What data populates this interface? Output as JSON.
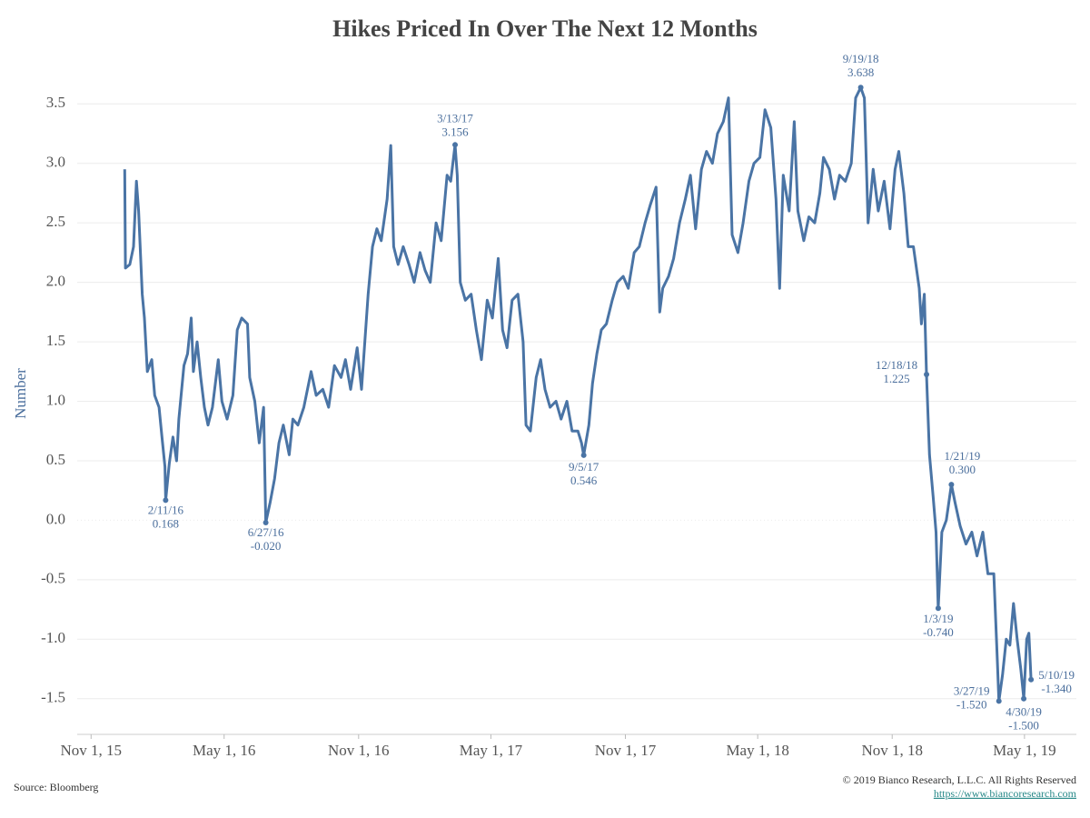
{
  "chart_data": {
    "type": "line",
    "title": "Hikes Priced In Over The Next 12 Months",
    "y_label": "Number",
    "source": "Source: Bloomberg",
    "copyright": "© 2019 Bianco Research, L.L.C. All Rights Reserved",
    "link": "https://www.biancoresearch.com",
    "xlim": [
      "2015-10-13",
      "2019-07-11"
    ],
    "ylim": [
      -1.8,
      3.93
    ],
    "grid": true,
    "zero_line": true,
    "xticks": [
      {
        "value": "2015-11-01",
        "label": "Nov 1, 15"
      },
      {
        "value": "2016-05-01",
        "label": "May 1, 16"
      },
      {
        "value": "2016-11-01",
        "label": "Nov 1, 16"
      },
      {
        "value": "2017-05-01",
        "label": "May 1, 17"
      },
      {
        "value": "2017-11-01",
        "label": "Nov 1, 17"
      },
      {
        "value": "2018-05-01",
        "label": "May 1, 18"
      },
      {
        "value": "2018-11-01",
        "label": "Nov 1, 18"
      },
      {
        "value": "2019-05-01",
        "label": "May 1, 19"
      }
    ],
    "yticks": [
      3.5,
      {
        "value": 3.0,
        "label": "3.0"
      },
      2.5,
      {
        "value": 2.0,
        "label": "2.0"
      },
      1.5,
      {
        "value": 1.0,
        "label": "1.0"
      },
      0.5,
      {
        "value": 0,
        "label": "0.0"
      },
      -0.5,
      {
        "value": -1.0,
        "label": "-1.0"
      },
      -1.5
    ],
    "x": [
      "2015-12-17",
      "2015-12-18",
      "2015-12-24",
      "2015-12-29",
      "2016-01-02",
      "2016-01-05",
      "2016-01-10",
      "2016-01-13",
      "2016-01-17",
      "2016-01-23",
      "2016-01-27",
      "2016-02-02",
      "2016-02-06",
      "2016-02-10",
      "2016-02-11",
      "2016-02-16",
      "2016-02-21",
      "2016-02-26",
      "2016-02-29",
      "2016-03-07",
      "2016-03-12",
      "2016-03-17",
      "2016-03-20",
      "2016-03-25",
      "2016-03-30",
      "2016-04-04",
      "2016-04-09",
      "2016-04-15",
      "2016-04-23",
      "2016-04-28",
      "2016-05-05",
      "2016-05-13",
      "2016-05-19",
      "2016-05-25",
      "2016-06-02",
      "2016-06-05",
      "2016-06-12",
      "2016-06-18",
      "2016-06-24",
      "2016-06-27",
      "2016-07-03",
      "2016-07-09",
      "2016-07-15",
      "2016-07-21",
      "2016-07-29",
      "2016-08-03",
      "2016-08-10",
      "2016-08-18",
      "2016-08-28",
      "2016-09-04",
      "2016-09-13",
      "2016-09-21",
      "2016-09-29",
      "2016-10-08",
      "2016-10-14",
      "2016-10-21",
      "2016-10-30",
      "2016-11-05",
      "2016-11-14",
      "2016-11-20",
      "2016-11-26",
      "2016-12-02",
      "2016-12-10",
      "2016-12-15",
      "2016-12-19",
      "2016-12-25",
      "2017-01-01",
      "2017-01-09",
      "2017-01-16",
      "2017-01-24",
      "2017-01-31",
      "2017-02-07",
      "2017-02-15",
      "2017-02-22",
      "2017-03-02",
      "2017-03-07",
      "2017-03-13",
      "2017-03-16",
      "2017-03-20",
      "2017-03-27",
      "2017-04-04",
      "2017-04-11",
      "2017-04-18",
      "2017-04-26",
      "2017-05-03",
      "2017-05-11",
      "2017-05-17",
      "2017-05-23",
      "2017-05-30",
      "2017-06-07",
      "2017-06-14",
      "2017-06-18",
      "2017-06-24",
      "2017-07-02",
      "2017-07-08",
      "2017-07-14",
      "2017-07-21",
      "2017-07-29",
      "2017-08-05",
      "2017-08-13",
      "2017-08-20",
      "2017-08-28",
      "2017-09-02",
      "2017-09-05",
      "2017-09-12",
      "2017-09-17",
      "2017-09-23",
      "2017-09-29",
      "2017-10-06",
      "2017-10-14",
      "2017-10-21",
      "2017-10-29",
      "2017-11-05",
      "2017-11-13",
      "2017-11-20",
      "2017-11-28",
      "2017-12-05",
      "2017-12-13",
      "2017-12-18",
      "2017-12-22",
      "2017-12-30",
      "2018-01-06",
      "2018-01-14",
      "2018-01-22",
      "2018-01-29",
      "2018-02-05",
      "2018-02-13",
      "2018-02-20",
      "2018-02-28",
      "2018-03-07",
      "2018-03-15",
      "2018-03-22",
      "2018-03-27",
      "2018-04-04",
      "2018-04-11",
      "2018-04-19",
      "2018-04-26",
      "2018-05-04",
      "2018-05-11",
      "2018-05-19",
      "2018-05-26",
      "2018-05-31",
      "2018-06-05",
      "2018-06-13",
      "2018-06-20",
      "2018-06-25",
      "2018-07-03",
      "2018-07-10",
      "2018-07-18",
      "2018-07-25",
      "2018-07-30",
      "2018-08-07",
      "2018-08-14",
      "2018-08-21",
      "2018-08-29",
      "2018-09-06",
      "2018-09-12",
      "2018-09-19",
      "2018-09-24",
      "2018-09-29",
      "2018-10-06",
      "2018-10-13",
      "2018-10-21",
      "2018-10-29",
      "2018-11-05",
      "2018-11-10",
      "2018-11-17",
      "2018-11-23",
      "2018-11-30",
      "2018-12-08",
      "2018-12-11",
      "2018-12-15",
      "2018-12-18",
      "2018-12-22",
      "2018-12-27",
      "2018-12-31",
      "2019-01-03",
      "2019-01-08",
      "2019-01-14",
      "2019-01-21",
      "2019-01-26",
      "2019-02-02",
      "2019-02-10",
      "2019-02-18",
      "2019-02-25",
      "2019-03-05",
      "2019-03-12",
      "2019-03-20",
      "2019-03-25",
      "2019-03-27",
      "2019-04-01",
      "2019-04-06",
      "2019-04-11",
      "2019-04-16",
      "2019-04-21",
      "2019-04-26",
      "2019-04-30",
      "2019-05-04",
      "2019-05-07",
      "2019-05-10"
    ],
    "series": [
      {
        "name": "Hikes Priced In",
        "color": "#4a74a5",
        "values": [
          2.95,
          2.12,
          2.15,
          2.3,
          2.85,
          2.6,
          1.9,
          1.7,
          1.25,
          1.35,
          1.05,
          0.95,
          0.7,
          0.45,
          0.168,
          0.48,
          0.7,
          0.5,
          0.85,
          1.3,
          1.4,
          1.7,
          1.25,
          1.5,
          1.2,
          0.95,
          0.8,
          0.95,
          1.35,
          1.0,
          0.85,
          1.05,
          1.6,
          1.7,
          1.65,
          1.2,
          1.0,
          0.65,
          0.95,
          -0.02,
          0.15,
          0.35,
          0.65,
          0.8,
          0.55,
          0.85,
          0.8,
          0.95,
          1.25,
          1.05,
          1.1,
          0.95,
          1.3,
          1.2,
          1.35,
          1.1,
          1.45,
          1.1,
          1.9,
          2.3,
          2.45,
          2.35,
          2.7,
          3.15,
          2.3,
          2.15,
          2.3,
          2.15,
          2.0,
          2.25,
          2.1,
          2.0,
          2.5,
          2.35,
          2.9,
          2.85,
          3.156,
          2.9,
          2.0,
          1.85,
          1.9,
          1.6,
          1.35,
          1.85,
          1.7,
          2.2,
          1.6,
          1.45,
          1.85,
          1.9,
          1.5,
          0.8,
          0.75,
          1.2,
          1.35,
          1.1,
          0.95,
          1.0,
          0.85,
          1.0,
          0.75,
          0.75,
          0.65,
          0.546,
          0.8,
          1.15,
          1.4,
          1.6,
          1.65,
          1.85,
          2.0,
          2.05,
          1.95,
          2.25,
          2.3,
          2.5,
          2.65,
          2.8,
          1.75,
          1.95,
          2.05,
          2.2,
          2.5,
          2.7,
          2.9,
          2.45,
          2.95,
          3.1,
          3.0,
          3.25,
          3.35,
          3.55,
          2.4,
          2.25,
          2.5,
          2.85,
          3.0,
          3.05,
          3.45,
          3.3,
          2.7,
          1.95,
          2.9,
          2.6,
          3.35,
          2.6,
          2.35,
          2.55,
          2.5,
          2.75,
          3.05,
          2.95,
          2.7,
          2.9,
          2.85,
          3.0,
          3.55,
          3.638,
          3.55,
          2.5,
          2.95,
          2.6,
          2.85,
          2.45,
          2.95,
          3.1,
          2.75,
          2.3,
          2.3,
          1.95,
          1.65,
          1.9,
          1.225,
          0.55,
          0.2,
          -0.1,
          -0.74,
          -0.1,
          0.0,
          0.3,
          0.15,
          -0.05,
          -0.2,
          -0.1,
          -0.3,
          -0.1,
          -0.45,
          -0.45,
          -1.2,
          -1.52,
          -1.3,
          -1.0,
          -1.05,
          -0.7,
          -1.0,
          -1.25,
          -1.5,
          -1.0,
          -0.95,
          -1.34
        ]
      }
    ],
    "annotations": [
      {
        "x": "2016-02-11",
        "value": 0.168,
        "label": "2/11/16",
        "value_label": "0.168"
      },
      {
        "x": "2016-06-27",
        "value": -0.02,
        "label": "6/27/16",
        "value_label": "-0.020"
      },
      {
        "x": "2017-03-13",
        "value": 3.156,
        "label": "3/13/17",
        "value_label": "3.156"
      },
      {
        "x": "2017-09-05",
        "value": 0.546,
        "label": "9/5/17",
        "value_label": "0.546"
      },
      {
        "x": "2018-09-19",
        "value": 3.638,
        "label": "9/19/18",
        "value_label": "3.638"
      },
      {
        "x": "2018-12-18",
        "value": 1.225,
        "label": "12/18/18",
        "value_label": "1.225"
      },
      {
        "x": "2019-01-21",
        "value": 0.3,
        "label": "1/21/19",
        "value_label": "0.300"
      },
      {
        "x": "2019-01-03",
        "value": -0.74,
        "label": "1/3/19",
        "value_label": "-0.740"
      },
      {
        "x": "2019-03-27",
        "value": -1.52,
        "label": "3/27/19",
        "value_label": "-1.520"
      },
      {
        "x": "2019-04-30",
        "value": -1.5,
        "label": "4/30/19",
        "value_label": "-1.500"
      },
      {
        "x": "2019-05-10",
        "value": -1.34,
        "label": "5/10/19",
        "value_label": "-1.340"
      }
    ]
  }
}
